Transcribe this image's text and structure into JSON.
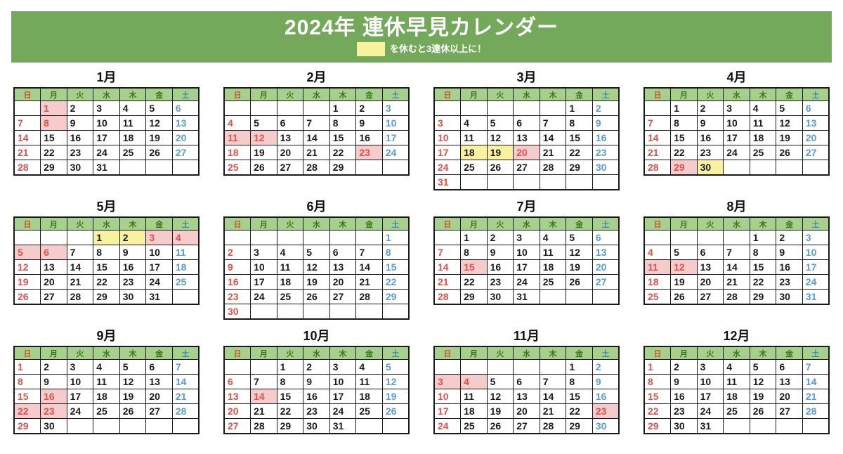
{
  "header": {
    "title": "2024年 連休早見カレンダー",
    "legend_text": "を休むと3連休以上に！"
  },
  "colors": {
    "banner_green": "#74a95c",
    "dow_header_bg": "#a8d08d",
    "dow_sunday_text": "#c5542a",
    "dow_weekday_text": "#38761d",
    "dow_saturday_text": "#3a87ad",
    "sunday_number": "#e0524a",
    "saturday_number": "#5b9bd5",
    "holiday_bg": "#f5cbcb",
    "recommended_bg": "#f8f1a0"
  },
  "day_headers": [
    "日",
    "月",
    "火",
    "水",
    "木",
    "金",
    "土"
  ],
  "months": [
    {
      "name": "1月",
      "weeks": [
        [
          "",
          1,
          2,
          3,
          4,
          5,
          6
        ],
        [
          7,
          8,
          9,
          10,
          11,
          12,
          13
        ],
        [
          14,
          15,
          16,
          17,
          18,
          19,
          20
        ],
        [
          21,
          22,
          23,
          24,
          25,
          26,
          27
        ],
        [
          28,
          29,
          30,
          31,
          "",
          "",
          ""
        ]
      ],
      "holidays": [
        1,
        8
      ],
      "recommended": []
    },
    {
      "name": "2月",
      "weeks": [
        [
          "",
          "",
          "",
          "",
          1,
          2,
          3
        ],
        [
          4,
          5,
          6,
          7,
          8,
          9,
          10
        ],
        [
          11,
          12,
          13,
          14,
          15,
          16,
          17
        ],
        [
          18,
          19,
          20,
          21,
          22,
          23,
          24
        ],
        [
          25,
          26,
          27,
          28,
          29,
          "",
          ""
        ]
      ],
      "holidays": [
        11,
        12,
        23
      ],
      "recommended": []
    },
    {
      "name": "3月",
      "weeks": [
        [
          "",
          "",
          "",
          "",
          "",
          1,
          2
        ],
        [
          3,
          4,
          5,
          6,
          7,
          8,
          9
        ],
        [
          10,
          11,
          12,
          13,
          14,
          15,
          16
        ],
        [
          17,
          18,
          19,
          20,
          21,
          22,
          23
        ],
        [
          24,
          25,
          26,
          27,
          28,
          29,
          30
        ],
        [
          31,
          "",
          "",
          "",
          "",
          "",
          ""
        ]
      ],
      "holidays": [
        20
      ],
      "recommended": [
        18,
        19
      ]
    },
    {
      "name": "4月",
      "weeks": [
        [
          "",
          1,
          2,
          3,
          4,
          5,
          6
        ],
        [
          7,
          8,
          9,
          10,
          11,
          12,
          13
        ],
        [
          14,
          15,
          16,
          17,
          18,
          19,
          20
        ],
        [
          21,
          22,
          23,
          24,
          25,
          26,
          27
        ],
        [
          28,
          29,
          30,
          "",
          "",
          "",
          ""
        ]
      ],
      "holidays": [
        29
      ],
      "recommended": [
        30
      ]
    },
    {
      "name": "5月",
      "weeks": [
        [
          "",
          "",
          "",
          1,
          2,
          3,
          4
        ],
        [
          5,
          6,
          7,
          8,
          9,
          10,
          11
        ],
        [
          12,
          13,
          14,
          15,
          16,
          17,
          18
        ],
        [
          19,
          20,
          21,
          22,
          23,
          24,
          25
        ],
        [
          26,
          27,
          28,
          29,
          30,
          31,
          ""
        ]
      ],
      "holidays": [
        3,
        4,
        5,
        6
      ],
      "recommended": [
        1,
        2
      ]
    },
    {
      "name": "6月",
      "weeks": [
        [
          "",
          "",
          "",
          "",
          "",
          "",
          1
        ],
        [
          2,
          3,
          4,
          5,
          6,
          7,
          8
        ],
        [
          9,
          10,
          11,
          12,
          13,
          14,
          15
        ],
        [
          16,
          17,
          18,
          19,
          20,
          21,
          22
        ],
        [
          23,
          24,
          25,
          26,
          27,
          28,
          29
        ],
        [
          30,
          "",
          "",
          "",
          "",
          "",
          ""
        ]
      ],
      "holidays": [],
      "recommended": []
    },
    {
      "name": "7月",
      "weeks": [
        [
          "",
          1,
          2,
          3,
          4,
          5,
          6
        ],
        [
          7,
          8,
          9,
          10,
          11,
          12,
          13
        ],
        [
          14,
          15,
          16,
          17,
          18,
          19,
          20
        ],
        [
          21,
          22,
          23,
          24,
          25,
          26,
          27
        ],
        [
          28,
          29,
          30,
          31,
          "",
          "",
          ""
        ]
      ],
      "holidays": [
        15
      ],
      "recommended": []
    },
    {
      "name": "8月",
      "weeks": [
        [
          "",
          "",
          "",
          "",
          1,
          2,
          3
        ],
        [
          4,
          5,
          6,
          7,
          8,
          9,
          10
        ],
        [
          11,
          12,
          13,
          14,
          15,
          16,
          17
        ],
        [
          18,
          19,
          20,
          21,
          22,
          23,
          24
        ],
        [
          25,
          26,
          27,
          28,
          29,
          30,
          31
        ]
      ],
      "holidays": [
        11,
        12
      ],
      "recommended": []
    },
    {
      "name": "9月",
      "weeks": [
        [
          1,
          2,
          3,
          4,
          5,
          6,
          7
        ],
        [
          8,
          9,
          10,
          11,
          12,
          13,
          14
        ],
        [
          15,
          16,
          17,
          18,
          19,
          20,
          21
        ],
        [
          22,
          23,
          24,
          25,
          26,
          27,
          28
        ],
        [
          29,
          30,
          "",
          "",
          "",
          "",
          ""
        ]
      ],
      "holidays": [
        16,
        22,
        23
      ],
      "recommended": []
    },
    {
      "name": "10月",
      "weeks": [
        [
          "",
          "",
          1,
          2,
          3,
          4,
          5
        ],
        [
          6,
          7,
          8,
          9,
          10,
          11,
          12
        ],
        [
          13,
          14,
          15,
          16,
          17,
          18,
          19
        ],
        [
          20,
          21,
          22,
          23,
          24,
          25,
          26
        ],
        [
          27,
          28,
          29,
          30,
          31,
          "",
          ""
        ]
      ],
      "holidays": [
        14
      ],
      "recommended": []
    },
    {
      "name": "11月",
      "weeks": [
        [
          "",
          "",
          "",
          "",
          "",
          1,
          2
        ],
        [
          3,
          4,
          5,
          6,
          7,
          8,
          9
        ],
        [
          10,
          11,
          12,
          13,
          14,
          15,
          16
        ],
        [
          17,
          18,
          19,
          20,
          21,
          22,
          23
        ],
        [
          24,
          25,
          26,
          27,
          28,
          29,
          30
        ]
      ],
      "holidays": [
        3,
        4,
        23
      ],
      "recommended": []
    },
    {
      "name": "12月",
      "weeks": [
        [
          1,
          2,
          3,
          4,
          5,
          6,
          7
        ],
        [
          8,
          9,
          10,
          11,
          12,
          13,
          14
        ],
        [
          15,
          16,
          17,
          18,
          19,
          20,
          21
        ],
        [
          22,
          23,
          24,
          25,
          26,
          27,
          28
        ],
        [
          29,
          30,
          31,
          "",
          "",
          "",
          ""
        ]
      ],
      "holidays": [],
      "recommended": []
    }
  ]
}
